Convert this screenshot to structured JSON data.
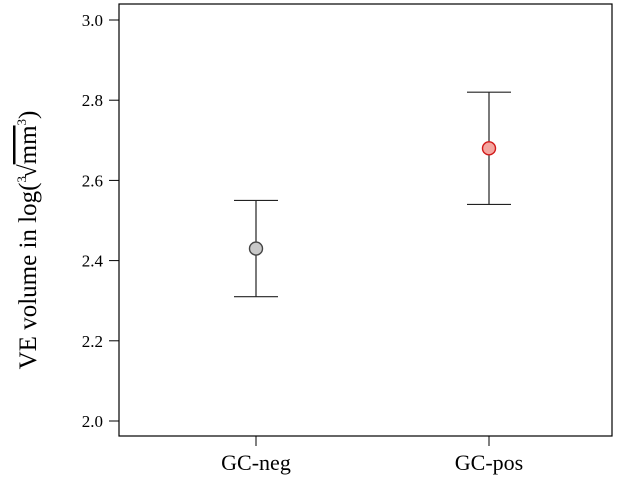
{
  "chart_data": {
    "type": "scatter",
    "title": "",
    "xlabel": "",
    "ylabel": {
      "prefix": "VE volume in ",
      "log": "log(",
      "root_index": "3",
      "radicand": "mm",
      "exponent": "3",
      "close": ")"
    },
    "categories": [
      "GC-neg",
      "GC-pos"
    ],
    "ylim": [
      2.0,
      3.0
    ],
    "yticks": [
      "2.0",
      "2.2",
      "2.4",
      "2.6",
      "2.8",
      "3.0"
    ],
    "grid": false,
    "series": [
      {
        "points": [
          {
            "category": "GC-neg",
            "mean": 2.43,
            "lower": 2.31,
            "upper": 2.55,
            "color": "#c8c8c8"
          },
          {
            "category": "GC-pos",
            "mean": 2.68,
            "lower": 2.54,
            "upper": 2.82,
            "color": "#f4a6a0"
          }
        ]
      }
    ],
    "colors": {
      "neg_fill": "#c8c8c8",
      "pos_fill": "#f4a6a0",
      "pos_stroke": "#d11a1a",
      "neg_stroke": "#444444",
      "axis": "#000000"
    }
  }
}
